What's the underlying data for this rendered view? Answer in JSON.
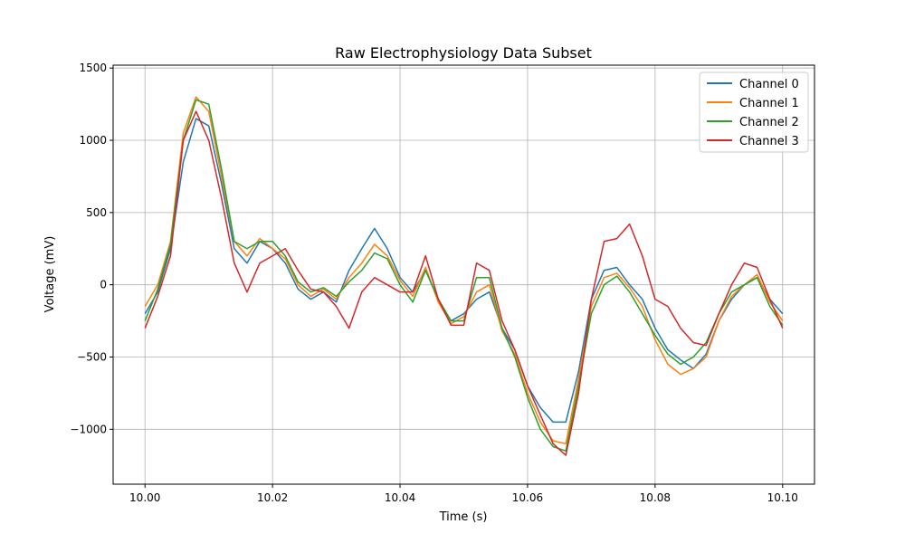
{
  "chart_data": {
    "type": "line",
    "title": "Raw Electrophysiology Data Subset",
    "xlabel": "Time (s)",
    "ylabel": "Voltage (mV)",
    "xlim": [
      9.995,
      10.105
    ],
    "ylim": [
      -1380,
      1520
    ],
    "xticks": [
      10.0,
      10.02,
      10.04,
      10.06,
      10.08,
      10.1
    ],
    "xtick_labels": [
      "10.00",
      "10.02",
      "10.04",
      "10.06",
      "10.08",
      "10.10"
    ],
    "yticks": [
      -1000,
      -500,
      0,
      500,
      1000,
      1500
    ],
    "ytick_labels": [
      "−1000",
      "−500",
      "0",
      "500",
      "1000",
      "1500"
    ],
    "grid": true,
    "legend_position": "top-right",
    "series": [
      {
        "name": "Channel 0",
        "color": "#1f77b4",
        "x": [
          10.0,
          10.002,
          10.004,
          10.006,
          10.008,
          10.01,
          10.012,
          10.014,
          10.016,
          10.018,
          10.02,
          10.022,
          10.024,
          10.026,
          10.028,
          10.03,
          10.032,
          10.034,
          10.036,
          10.038,
          10.04,
          10.042,
          10.044,
          10.046,
          10.048,
          10.05,
          10.052,
          10.054,
          10.056,
          10.058,
          10.06,
          10.062,
          10.064,
          10.066,
          10.068,
          10.07,
          10.072,
          10.074,
          10.076,
          10.078,
          10.08,
          10.082,
          10.084,
          10.086,
          10.088,
          10.09,
          10.092,
          10.094,
          10.096,
          10.098,
          10.1
        ],
        "y": [
          -200,
          -50,
          250,
          850,
          1150,
          1100,
          700,
          250,
          150,
          300,
          250,
          150,
          -30,
          -100,
          -50,
          -120,
          100,
          250,
          390,
          250,
          50,
          -50,
          100,
          -100,
          -250,
          -200,
          -100,
          -50,
          -300,
          -450,
          -700,
          -850,
          -950,
          -950,
          -600,
          -100,
          100,
          120,
          0,
          -100,
          -300,
          -450,
          -520,
          -580,
          -480,
          -250,
          -100,
          0,
          50,
          -100,
          -200
        ]
      },
      {
        "name": "Channel 1",
        "color": "#ff7f0e",
        "x": [
          10.0,
          10.002,
          10.004,
          10.006,
          10.008,
          10.01,
          10.012,
          10.014,
          10.016,
          10.018,
          10.02,
          10.022,
          10.024,
          10.026,
          10.028,
          10.03,
          10.032,
          10.034,
          10.036,
          10.038,
          10.04,
          10.042,
          10.044,
          10.046,
          10.048,
          10.05,
          10.052,
          10.054,
          10.056,
          10.058,
          10.06,
          10.062,
          10.064,
          10.066,
          10.068,
          10.07,
          10.072,
          10.074,
          10.076,
          10.078,
          10.08,
          10.082,
          10.084,
          10.086,
          10.088,
          10.09,
          10.092,
          10.094,
          10.096,
          10.098,
          10.1
        ],
        "y": [
          -150,
          0,
          300,
          1050,
          1300,
          1200,
          750,
          300,
          200,
          320,
          250,
          180,
          0,
          -80,
          -30,
          -100,
          50,
          150,
          280,
          200,
          30,
          -80,
          120,
          -120,
          -270,
          -220,
          -50,
          0,
          -320,
          -480,
          -750,
          -950,
          -1080,
          -1100,
          -650,
          -150,
          50,
          80,
          -20,
          -150,
          -380,
          -550,
          -620,
          -580,
          -500,
          -250,
          -80,
          0,
          70,
          -120,
          -250
        ]
      },
      {
        "name": "Channel 2",
        "color": "#2ca02c",
        "x": [
          10.0,
          10.002,
          10.004,
          10.006,
          10.008,
          10.01,
          10.012,
          10.014,
          10.016,
          10.018,
          10.02,
          10.022,
          10.024,
          10.026,
          10.028,
          10.03,
          10.032,
          10.034,
          10.036,
          10.038,
          10.04,
          10.042,
          10.044,
          10.046,
          10.048,
          10.05,
          10.052,
          10.054,
          10.056,
          10.058,
          10.06,
          10.062,
          10.064,
          10.066,
          10.068,
          10.07,
          10.072,
          10.074,
          10.076,
          10.078,
          10.08,
          10.082,
          10.084,
          10.086,
          10.088,
          10.09,
          10.092,
          10.094,
          10.096,
          10.098,
          10.1
        ],
        "y": [
          -250,
          -30,
          280,
          1000,
          1280,
          1250,
          800,
          300,
          250,
          300,
          300,
          200,
          20,
          -50,
          -20,
          -80,
          20,
          100,
          220,
          180,
          0,
          -120,
          100,
          -100,
          -250,
          -250,
          50,
          50,
          -300,
          -500,
          -780,
          -1000,
          -1120,
          -1150,
          -700,
          -200,
          0,
          60,
          -50,
          -200,
          -350,
          -480,
          -550,
          -500,
          -400,
          -200,
          -50,
          0,
          50,
          -150,
          -280
        ]
      },
      {
        "name": "Channel 3",
        "color": "#d62728",
        "x": [
          10.0,
          10.002,
          10.004,
          10.006,
          10.008,
          10.01,
          10.012,
          10.014,
          10.016,
          10.018,
          10.02,
          10.022,
          10.024,
          10.026,
          10.028,
          10.03,
          10.032,
          10.034,
          10.036,
          10.038,
          10.04,
          10.042,
          10.044,
          10.046,
          10.048,
          10.05,
          10.052,
          10.054,
          10.056,
          10.058,
          10.06,
          10.062,
          10.064,
          10.066,
          10.068,
          10.07,
          10.072,
          10.074,
          10.076,
          10.078,
          10.08,
          10.082,
          10.084,
          10.086,
          10.088,
          10.09,
          10.092,
          10.094,
          10.096,
          10.098,
          10.1
        ],
        "y": [
          -300,
          -80,
          200,
          1000,
          1200,
          1000,
          600,
          150,
          -50,
          150,
          200,
          250,
          100,
          -30,
          -50,
          -150,
          -300,
          -50,
          50,
          0,
          -50,
          -50,
          200,
          -100,
          -280,
          -280,
          150,
          100,
          -250,
          -450,
          -700,
          -900,
          -1100,
          -1180,
          -750,
          -100,
          300,
          320,
          420,
          200,
          -100,
          -150,
          -300,
          -400,
          -420,
          -200,
          0,
          150,
          120,
          -100,
          -300
        ]
      }
    ]
  }
}
